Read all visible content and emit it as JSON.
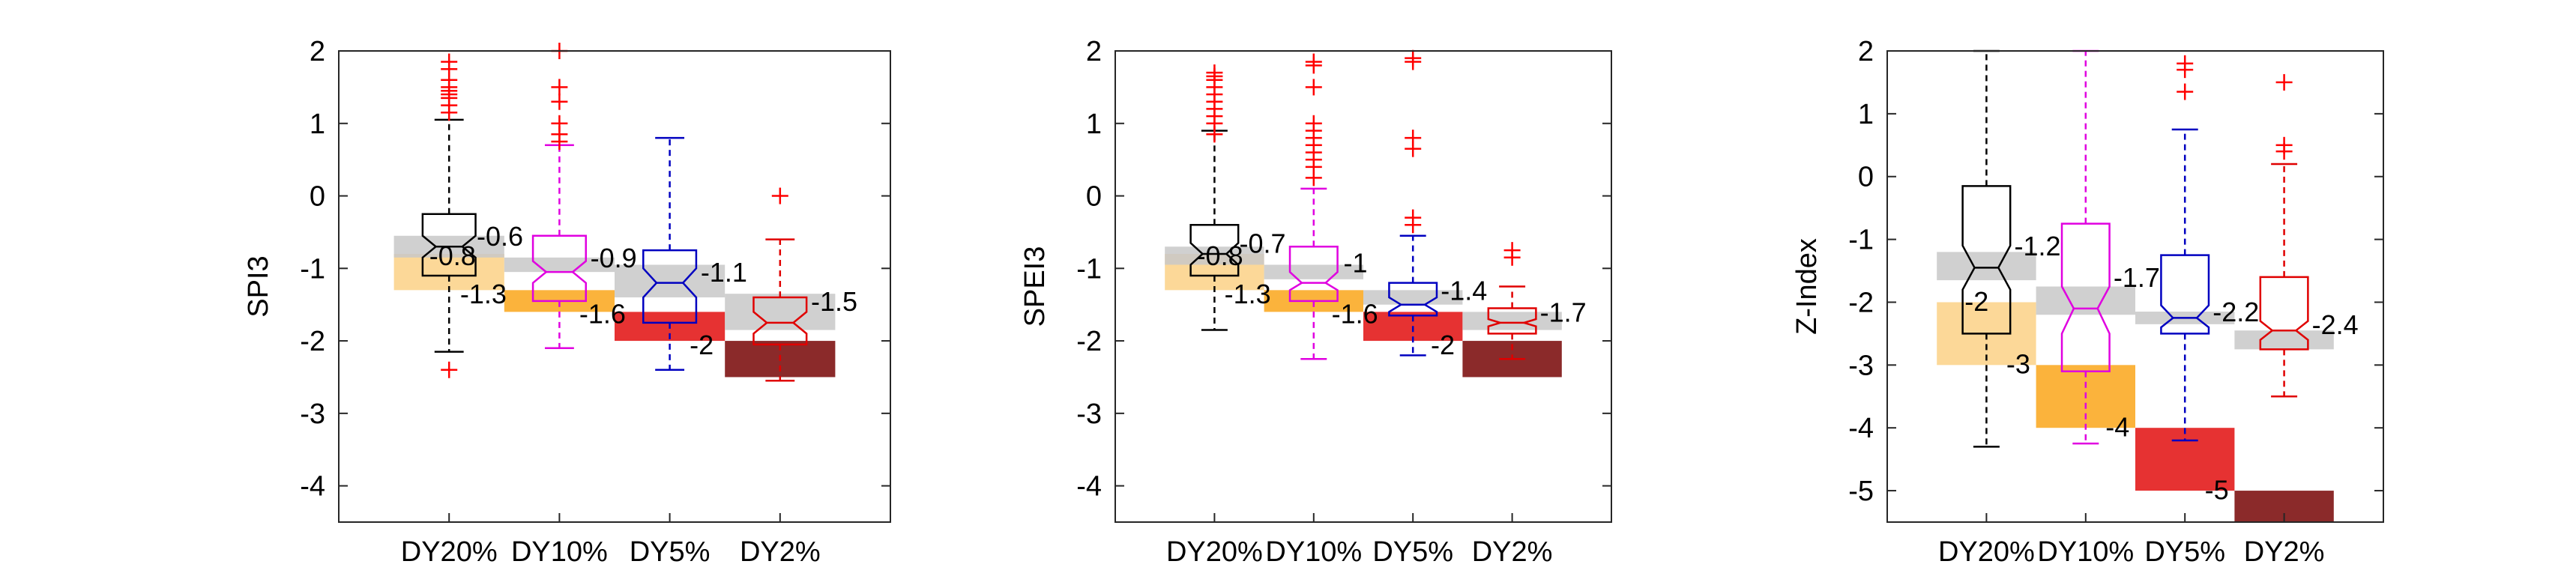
{
  "chart_data": [
    {
      "type": "boxplot",
      "ylabel": "SPI3",
      "ylim": [
        -4.5,
        2
      ],
      "yticks": [
        -4,
        -3,
        -2,
        -1,
        0,
        1,
        2
      ],
      "categories": [
        "DY20%",
        "DY10%",
        "DY5%",
        "DY2%"
      ],
      "box_colors": [
        "#000000",
        "#e000e0",
        "#0000c0",
        "#e00000"
      ],
      "whisker_colors": [
        "#000000",
        "#e000e0",
        "#0000c0",
        "#e00000"
      ],
      "boxes": [
        {
          "q1": -1.1,
          "median": -0.7,
          "q3": -0.25,
          "notch_lo": -0.85,
          "notch_hi": -0.55,
          "whisker_lo": -2.15,
          "whisker_hi": 1.05,
          "outliers": [
            1.85,
            1.75,
            1.6,
            1.5,
            1.45,
            1.4,
            1.35,
            1.25,
            1.15,
            -2.4
          ]
        },
        {
          "q1": -1.45,
          "median": -1.05,
          "q3": -0.55,
          "notch_lo": -1.2,
          "notch_hi": -0.9,
          "whisker_lo": -2.1,
          "whisker_hi": 0.7,
          "outliers": [
            2.0,
            1.5,
            1.3,
            1.0,
            0.85,
            0.75
          ]
        },
        {
          "q1": -1.75,
          "median": -1.2,
          "q3": -0.75,
          "notch_lo": -1.4,
          "notch_hi": -1.0,
          "whisker_lo": -2.4,
          "whisker_hi": 0.8,
          "outliers": []
        },
        {
          "q1": -2.05,
          "median": -1.75,
          "q3": -1.4,
          "notch_lo": -1.9,
          "notch_hi": -1.6,
          "whisker_lo": -2.55,
          "whisker_hi": -0.6,
          "outliers": [
            0.0
          ]
        }
      ],
      "threshold_bands": [
        {
          "category": "DY20%",
          "lo": -1.3,
          "hi": -0.8,
          "color": "#fcd898"
        },
        {
          "category": "DY10%",
          "lo": -1.6,
          "hi": -1.3,
          "color": "#fbb33c"
        },
        {
          "category": "DY5%",
          "lo": -2.0,
          "hi": -1.6,
          "color": "#e63232"
        },
        {
          "category": "DY2%",
          "lo": -2.5,
          "hi": -2.0,
          "color": "#8b2a2a"
        }
      ],
      "mean_bands": [
        {
          "category": "DY20%",
          "lo": -0.85,
          "hi": -0.55
        },
        {
          "category": "DY10%",
          "lo": -1.05,
          "hi": -0.85
        },
        {
          "category": "DY5%",
          "lo": -1.4,
          "hi": -0.95
        },
        {
          "category": "DY2%",
          "lo": -1.85,
          "hi": -1.35
        }
      ],
      "labels": [
        {
          "text": "-0.8",
          "x": 0.82,
          "y": -0.82
        },
        {
          "text": "-0.6",
          "x": 1.25,
          "y": -0.55
        },
        {
          "text": "-1.3",
          "x": 1.1,
          "y": -1.35
        },
        {
          "text": "-0.9",
          "x": 2.28,
          "y": -0.85
        },
        {
          "text": "-1.6",
          "x": 2.18,
          "y": -1.62
        },
        {
          "text": "-1.1",
          "x": 3.28,
          "y": -1.05
        },
        {
          "text": "-2",
          "x": 3.18,
          "y": -2.05
        },
        {
          "text": "-1.5",
          "x": 4.28,
          "y": -1.45
        }
      ]
    },
    {
      "type": "boxplot",
      "ylabel": "SPEI3",
      "ylim": [
        -4.5,
        2
      ],
      "yticks": [
        -4,
        -3,
        -2,
        -1,
        0,
        1,
        2
      ],
      "categories": [
        "DY20%",
        "DY10%",
        "DY5%",
        "DY2%"
      ],
      "box_colors": [
        "#000000",
        "#e000e0",
        "#0000c0",
        "#e00000"
      ],
      "whisker_colors": [
        "#000000",
        "#e000e0",
        "#0000c0",
        "#e00000"
      ],
      "boxes": [
        {
          "q1": -1.1,
          "median": -0.8,
          "q3": -0.4,
          "notch_lo": -0.95,
          "notch_hi": -0.65,
          "whisker_lo": -1.85,
          "whisker_hi": 0.9,
          "outliers": [
            1.7,
            1.65,
            1.6,
            1.5,
            1.4,
            1.3,
            1.2,
            1.1,
            1.0,
            0.85
          ]
        },
        {
          "q1": -1.45,
          "median": -1.2,
          "q3": -0.7,
          "notch_lo": -1.3,
          "notch_hi": -1.05,
          "whisker_lo": -2.25,
          "whisker_hi": 0.1,
          "outliers": [
            1.85,
            1.8,
            1.5,
            1.0,
            0.9,
            0.8,
            0.7,
            0.6,
            0.5,
            0.4,
            0.25
          ]
        },
        {
          "q1": -1.65,
          "median": -1.5,
          "q3": -1.2,
          "notch_lo": -1.6,
          "notch_hi": -1.4,
          "whisker_lo": -2.2,
          "whisker_hi": -0.55,
          "outliers": [
            1.9,
            1.85,
            0.8,
            0.65,
            -0.3,
            -0.4
          ]
        },
        {
          "q1": -1.9,
          "median": -1.75,
          "q3": -1.55,
          "notch_lo": -1.8,
          "notch_hi": -1.7,
          "whisker_lo": -2.25,
          "whisker_hi": -1.25,
          "outliers": [
            -0.75,
            -0.85
          ]
        }
      ],
      "threshold_bands": [
        {
          "category": "DY20%",
          "lo": -1.3,
          "hi": -0.8,
          "color": "#fcd898"
        },
        {
          "category": "DY10%",
          "lo": -1.6,
          "hi": -1.3,
          "color": "#fbb33c"
        },
        {
          "category": "DY5%",
          "lo": -2.0,
          "hi": -1.6,
          "color": "#e63232"
        },
        {
          "category": "DY2%",
          "lo": -2.5,
          "hi": -2.0,
          "color": "#8b2a2a"
        }
      ],
      "mean_bands": [
        {
          "category": "DY20%",
          "lo": -0.95,
          "hi": -0.7
        },
        {
          "category": "DY10%",
          "lo": -1.15,
          "hi": -0.95
        },
        {
          "category": "DY5%",
          "lo": -1.5,
          "hi": -1.3
        },
        {
          "category": "DY2%",
          "lo": -1.85,
          "hi": -1.6
        }
      ],
      "labels": [
        {
          "text": "-0.8",
          "x": 0.82,
          "y": -0.82
        },
        {
          "text": "-0.7",
          "x": 1.25,
          "y": -0.65
        },
        {
          "text": "-1.3",
          "x": 1.1,
          "y": -1.35
        },
        {
          "text": "-1",
          "x": 2.3,
          "y": -0.92
        },
        {
          "text": "-1.6",
          "x": 2.18,
          "y": -1.62
        },
        {
          "text": "-1.4",
          "x": 3.28,
          "y": -1.3
        },
        {
          "text": "-2",
          "x": 3.18,
          "y": -2.05
        },
        {
          "text": "-1.7",
          "x": 4.28,
          "y": -1.6
        }
      ]
    },
    {
      "type": "boxplot",
      "ylabel": "Z-Index",
      "ylim": [
        -5.5,
        2
      ],
      "yticks": [
        -5,
        -4,
        -3,
        -2,
        -1,
        0,
        1,
        2
      ],
      "categories": [
        "DY20%",
        "DY10%",
        "DY5%",
        "DY2%"
      ],
      "box_colors": [
        "#000000",
        "#e000e0",
        "#0000c0",
        "#e00000"
      ],
      "whisker_colors": [
        "#000000",
        "#e000e0",
        "#0000c0",
        "#e00000"
      ],
      "boxes": [
        {
          "q1": -2.5,
          "median": -1.45,
          "q3": -0.15,
          "notch_lo": -1.8,
          "notch_hi": -1.1,
          "whisker_lo": -4.3,
          "whisker_hi": 2.0,
          "outliers": []
        },
        {
          "q1": -3.1,
          "median": -2.1,
          "q3": -0.75,
          "notch_lo": -2.5,
          "notch_hi": -1.75,
          "whisker_lo": -4.25,
          "whisker_hi": 2.0,
          "outliers": []
        },
        {
          "q1": -2.5,
          "median": -2.25,
          "q3": -1.25,
          "notch_lo": -2.4,
          "notch_hi": -2.05,
          "whisker_lo": -4.2,
          "whisker_hi": 0.75,
          "outliers": [
            1.8,
            1.7,
            1.35
          ]
        },
        {
          "q1": -2.75,
          "median": -2.45,
          "q3": -1.6,
          "notch_lo": -2.6,
          "notch_hi": -2.3,
          "whisker_lo": -3.5,
          "whisker_hi": 0.2,
          "outliers": [
            1.5,
            0.5,
            0.4
          ]
        }
      ],
      "threshold_bands": [
        {
          "category": "DY20%",
          "lo": -3.0,
          "hi": -2.0,
          "color": "#fcd898"
        },
        {
          "category": "DY10%",
          "lo": -4.0,
          "hi": -3.0,
          "color": "#fbb33c"
        },
        {
          "category": "DY5%",
          "lo": -5.0,
          "hi": -4.0,
          "color": "#e63232"
        },
        {
          "category": "DY2%",
          "lo": -5.5,
          "hi": -5.0,
          "color": "#8b2a2a"
        }
      ],
      "mean_bands": [
        {
          "category": "DY20%",
          "lo": -1.65,
          "hi": -1.2
        },
        {
          "category": "DY10%",
          "lo": -2.2,
          "hi": -1.75
        },
        {
          "category": "DY5%",
          "lo": -2.35,
          "hi": -2.15
        },
        {
          "category": "DY2%",
          "lo": -2.75,
          "hi": -2.45
        }
      ],
      "labels": [
        {
          "text": "-2",
          "x": 0.78,
          "y": -1.98
        },
        {
          "text": "-1.2",
          "x": 1.28,
          "y": -1.1
        },
        {
          "text": "-3",
          "x": 1.2,
          "y": -2.98
        },
        {
          "text": "-1.7",
          "x": 2.28,
          "y": -1.6
        },
        {
          "text": "-4",
          "x": 2.2,
          "y": -3.98
        },
        {
          "text": "-2.2",
          "x": 3.28,
          "y": -2.15
        },
        {
          "text": "-5",
          "x": 3.2,
          "y": -4.98
        },
        {
          "text": "-2.4",
          "x": 4.28,
          "y": -2.35
        }
      ]
    }
  ]
}
